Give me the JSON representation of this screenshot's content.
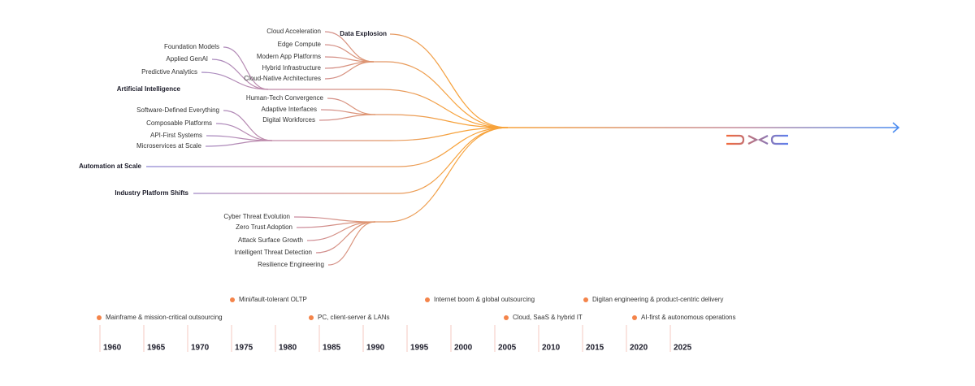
{
  "branches": [
    {
      "label": "Data Explosion",
      "items": [
        "Cloud Acceleration",
        "Edge Compute",
        "Modern App Platforms",
        "Hybrid Infrastructure",
        "Cloud-Native Architectures"
      ]
    },
    {
      "label": "Artificial Intelligence",
      "items": [
        "Foundation Models",
        "Applied GenAI",
        "Predictive Analytics"
      ]
    },
    {
      "items": [
        "Human-Tech Convergence",
        "Adaptive Interfaces",
        "Digital Workforces"
      ]
    },
    {
      "items": [
        "Software-Defined Everything",
        "Composable Platforms",
        "API-First Systems",
        "Microservices at Scale"
      ]
    },
    {
      "label": "Automation at Scale"
    },
    {
      "label": "Industry Platform Shifts"
    },
    {
      "items": [
        "Cyber Threat Evolution",
        "Zero Trust Adoption",
        "Attack Surface Growth",
        "Intelligent Threat Detection",
        "Resilience Engineering"
      ]
    }
  ],
  "timeline": {
    "upper_events": [
      "Mini/fault-tolerant OLTP",
      "Internet boom & global outsourcing",
      "Digitan engineering & product-centric delivery"
    ],
    "lower_events": [
      "Mainframe & mission-critical outsourcing",
      "PC, client-server & LANs",
      "Cloud, SaaS & hybrid IT",
      "AI-first & autonomous operations"
    ],
    "years": [
      "1960",
      "1965",
      "1970",
      "1975",
      "1980",
      "1985",
      "1990",
      "1995",
      "2000",
      "2005",
      "2010",
      "2015",
      "2020",
      "2025"
    ]
  }
}
